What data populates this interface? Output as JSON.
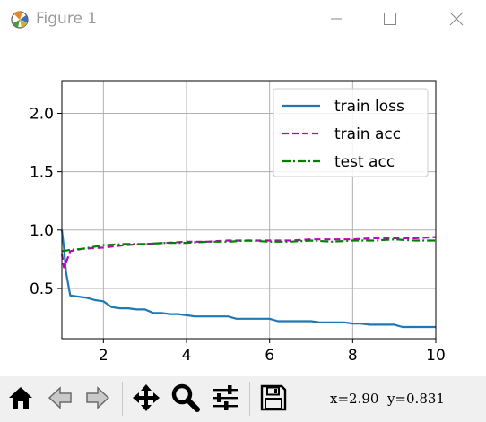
{
  "window": {
    "title": "Figure 1",
    "controls": [
      "minimize",
      "maximize",
      "close"
    ]
  },
  "toolbar": {
    "buttons": [
      {
        "name": "home",
        "icon": "home-icon"
      },
      {
        "name": "back",
        "icon": "arrow-left-icon"
      },
      {
        "name": "forward",
        "icon": "arrow-right-icon"
      },
      {
        "name": "pan",
        "icon": "move-icon"
      },
      {
        "name": "zoom",
        "icon": "magnifier-icon"
      },
      {
        "name": "configure-subplots",
        "icon": "sliders-icon"
      },
      {
        "name": "save",
        "icon": "floppy-disk-icon"
      }
    ],
    "coordinates": "x=2.90  y=0.831"
  },
  "chart_data": {
    "type": "line",
    "title": "",
    "xlabel": "",
    "ylabel": "",
    "xlim": [
      1,
      10
    ],
    "ylim": [
      0.07,
      2.28
    ],
    "xticks": [
      2,
      4,
      6,
      8,
      10
    ],
    "yticks": [
      0.5,
      1.0,
      1.5,
      2.0
    ],
    "xtick_labels": [
      "2",
      "4",
      "6",
      "8",
      "10"
    ],
    "ytick_labels": [
      "0.5",
      "1.0",
      "1.5",
      "2.0"
    ],
    "grid": true,
    "legend_position": "top-right",
    "series": [
      {
        "name": "train loss",
        "color": "#1f77b4",
        "style": "solid",
        "x": [
          1.0,
          1.05,
          1.1,
          1.2,
          1.4,
          1.6,
          1.8,
          2.0,
          2.2,
          2.4,
          2.6,
          2.8,
          3.0,
          3.2,
          3.4,
          3.6,
          3.8,
          4.0,
          4.2,
          4.4,
          4.6,
          4.8,
          5.0,
          5.2,
          5.4,
          5.6,
          5.8,
          6.0,
          6.2,
          6.4,
          6.6,
          6.8,
          7.0,
          7.2,
          7.4,
          7.6,
          7.8,
          8.0,
          8.2,
          8.4,
          8.6,
          8.8,
          9.0,
          9.2,
          9.4,
          9.6,
          9.8,
          10.0
        ],
        "y": [
          1.0,
          0.85,
          0.64,
          0.44,
          0.43,
          0.42,
          0.4,
          0.39,
          0.34,
          0.33,
          0.33,
          0.32,
          0.32,
          0.29,
          0.29,
          0.28,
          0.28,
          0.27,
          0.26,
          0.26,
          0.26,
          0.26,
          0.26,
          0.24,
          0.24,
          0.24,
          0.24,
          0.24,
          0.22,
          0.22,
          0.22,
          0.22,
          0.22,
          0.21,
          0.21,
          0.21,
          0.21,
          0.2,
          0.2,
          0.19,
          0.19,
          0.19,
          0.19,
          0.17,
          0.17,
          0.17,
          0.17,
          0.17
        ]
      },
      {
        "name": "train acc",
        "color": "#bf00bf",
        "style": "dashed",
        "x": [
          1.0,
          1.05,
          1.1,
          1.2,
          1.5,
          2.0,
          2.5,
          3.0,
          3.5,
          4.0,
          4.5,
          5.0,
          5.5,
          6.0,
          6.5,
          7.0,
          7.5,
          8.0,
          8.5,
          9.0,
          9.5,
          10.0
        ],
        "y": [
          0.8,
          0.68,
          0.72,
          0.82,
          0.84,
          0.85,
          0.87,
          0.88,
          0.89,
          0.9,
          0.9,
          0.91,
          0.91,
          0.91,
          0.91,
          0.92,
          0.92,
          0.92,
          0.93,
          0.93,
          0.93,
          0.94
        ]
      },
      {
        "name": "test acc",
        "color": "#008000",
        "style": "dashdot",
        "x": [
          1.0,
          1.2,
          1.5,
          2.0,
          2.5,
          3.0,
          3.5,
          4.0,
          4.5,
          5.0,
          5.5,
          6.0,
          6.5,
          7.0,
          7.5,
          8.0,
          8.5,
          9.0,
          9.5,
          10.0
        ],
        "y": [
          0.82,
          0.83,
          0.84,
          0.87,
          0.88,
          0.88,
          0.89,
          0.89,
          0.9,
          0.9,
          0.91,
          0.9,
          0.9,
          0.91,
          0.9,
          0.91,
          0.91,
          0.92,
          0.91,
          0.91
        ]
      }
    ]
  }
}
